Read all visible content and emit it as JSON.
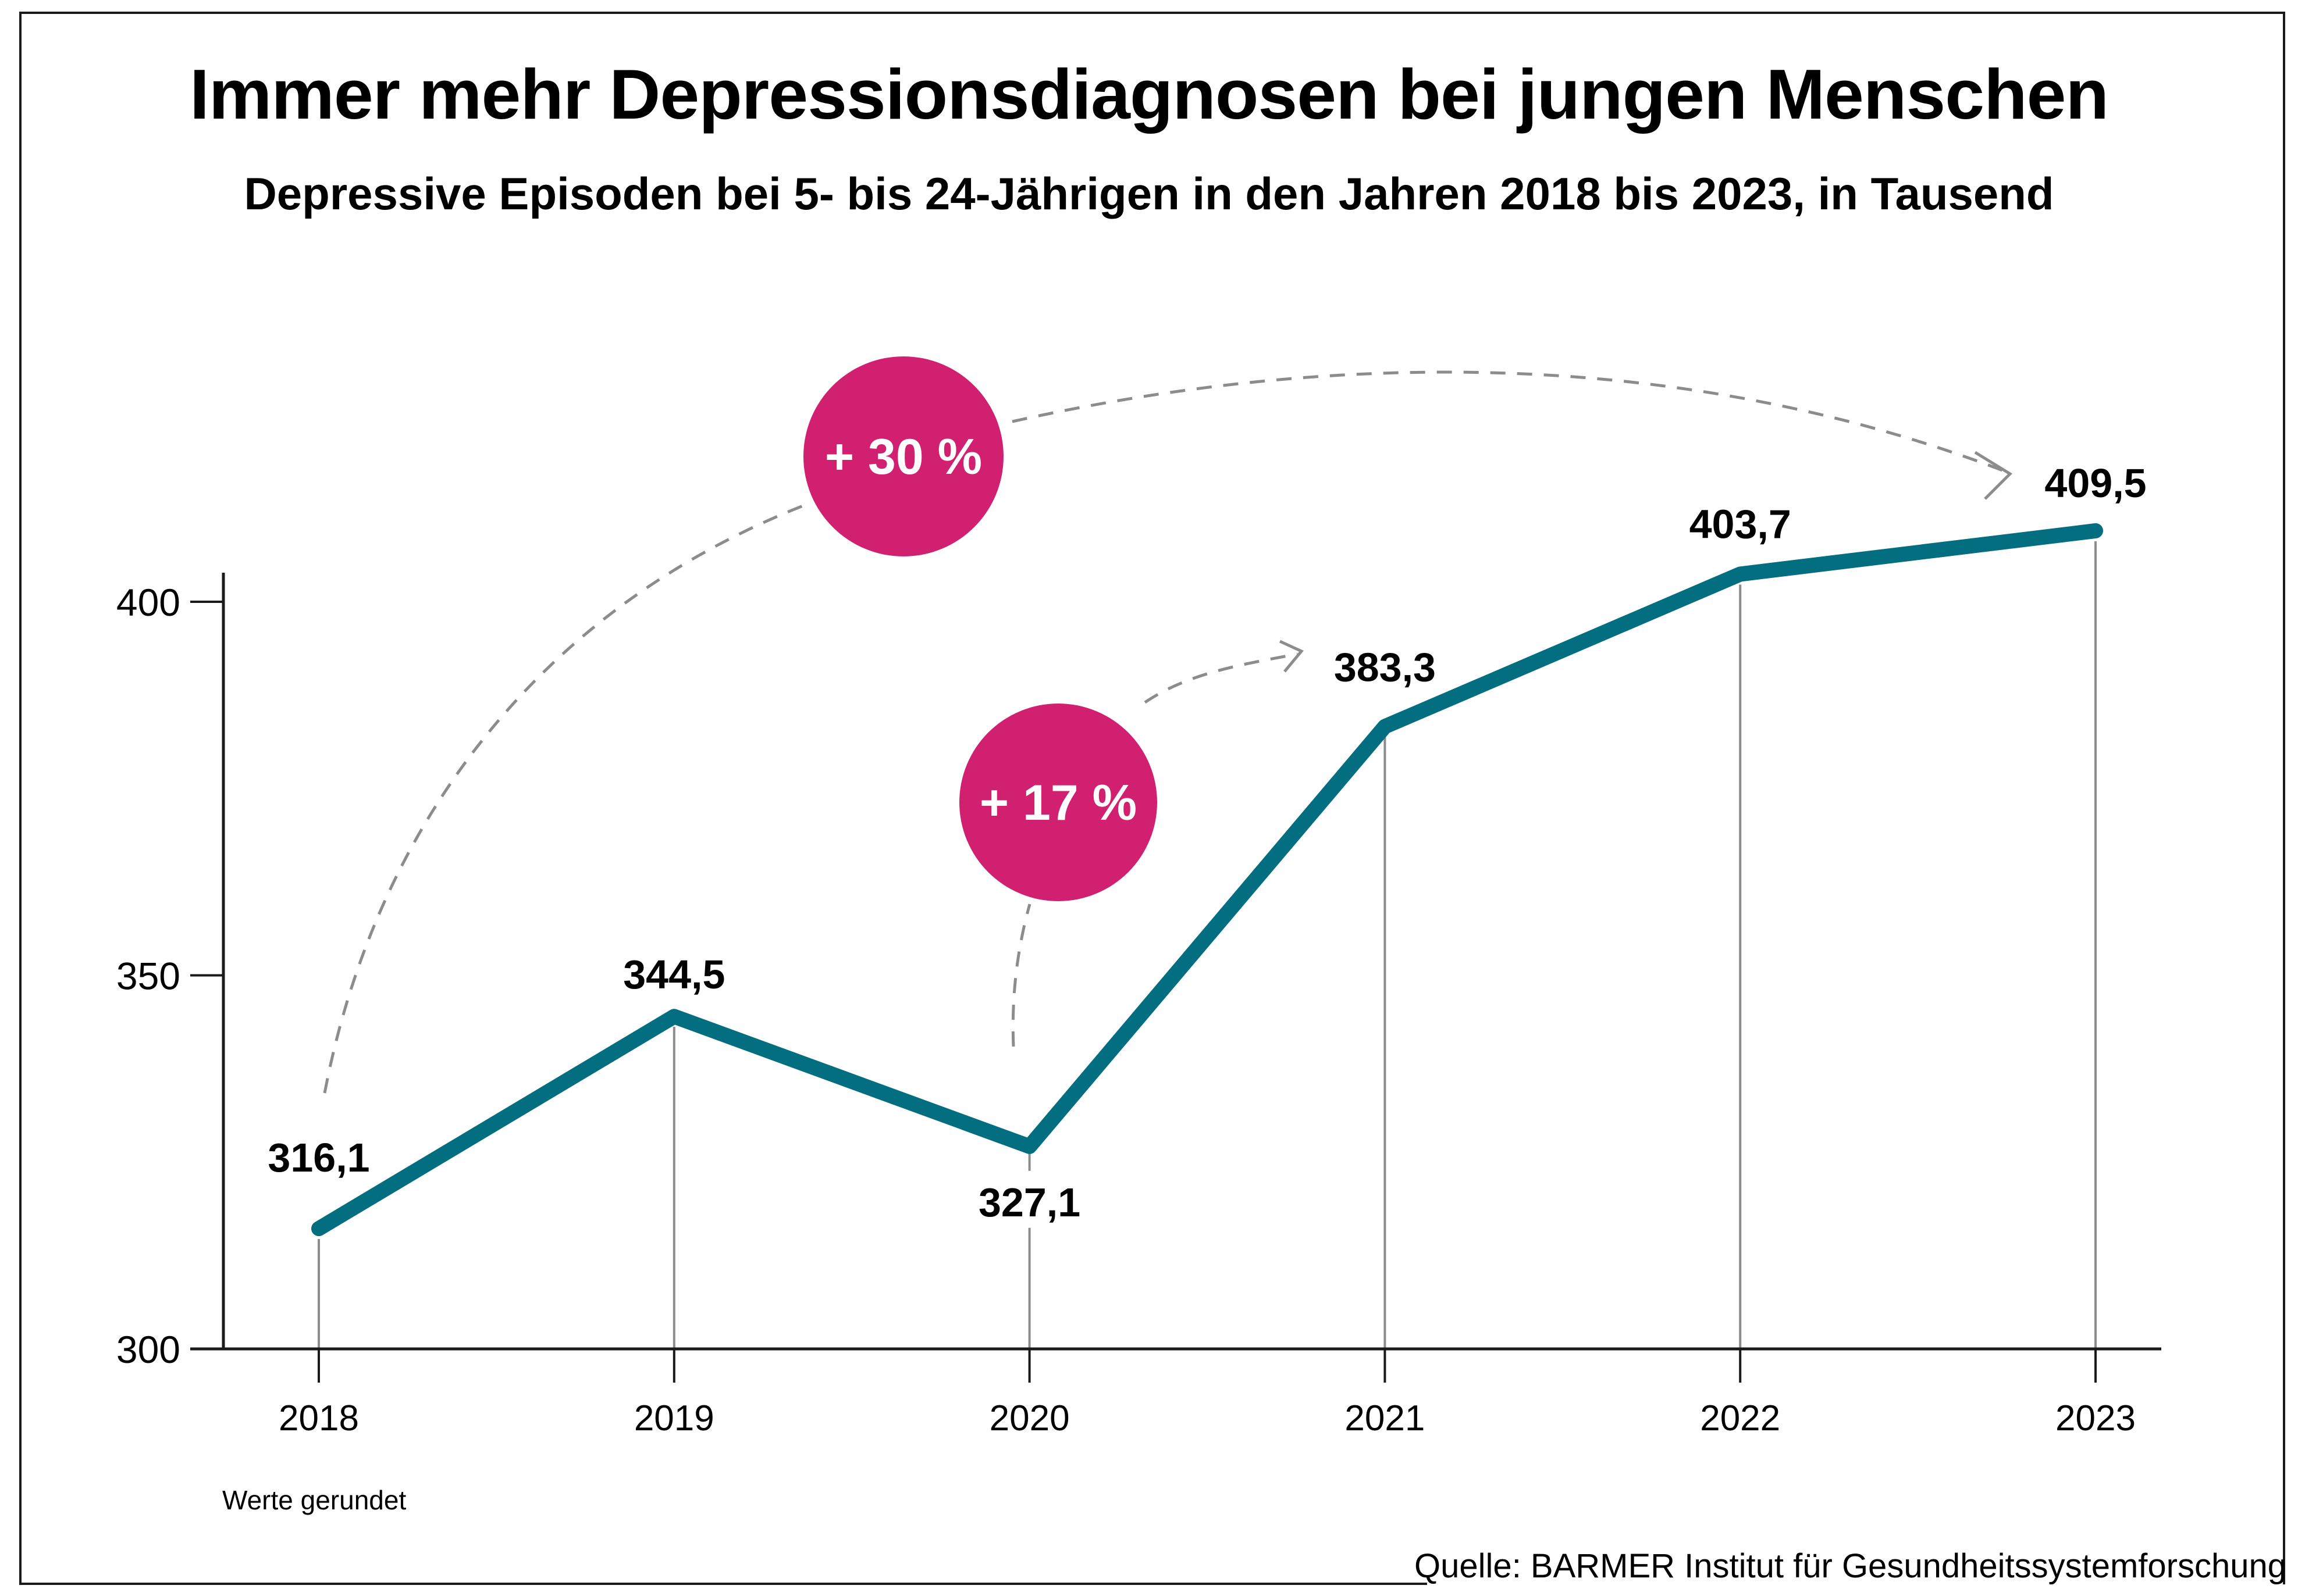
{
  "title": "Immer mehr Depressionsdiagnosen bei jungen Menschen",
  "subtitle": "Depressive Episoden bei 5- bis 24-Jährigen in den Jahren 2018 bis 2023, in Tausend",
  "note": "Werte gerundet",
  "source": "Quelle: BARMER Institut für Gesundheitssystemforschung",
  "colors": {
    "line": "#036E80",
    "badge": "#D22070",
    "annotation": "#8C8C8C",
    "axis": "#1A1A1A",
    "dropline": "#8C8C8C"
  },
  "chart_data": {
    "type": "line",
    "title": "Immer mehr Depressionsdiagnosen bei jungen Menschen",
    "subtitle": "Depressive Episoden bei 5- bis 24-Jährigen in den Jahren 2018 bis 2023, in Tausend",
    "xlabel": "",
    "ylabel": "",
    "categories": [
      "2018",
      "2019",
      "2020",
      "2021",
      "2022",
      "2023"
    ],
    "values": [
      316.1,
      344.5,
      327.1,
      383.3,
      403.7,
      409.5
    ],
    "value_labels": [
      "316,1",
      "344,5",
      "327,1",
      "383,3",
      "403,7",
      "409,5"
    ],
    "ylim": [
      300,
      400
    ],
    "yticks": [
      300,
      350,
      400
    ],
    "ytick_labels": [
      "300",
      "350",
      "400"
    ],
    "grid": false,
    "legend": "none",
    "annotations": [
      {
        "label": "+ 30 %",
        "from": "2018",
        "to": "2023"
      },
      {
        "label": "+ 17 %",
        "from": "2020",
        "to": "2021"
      }
    ]
  }
}
